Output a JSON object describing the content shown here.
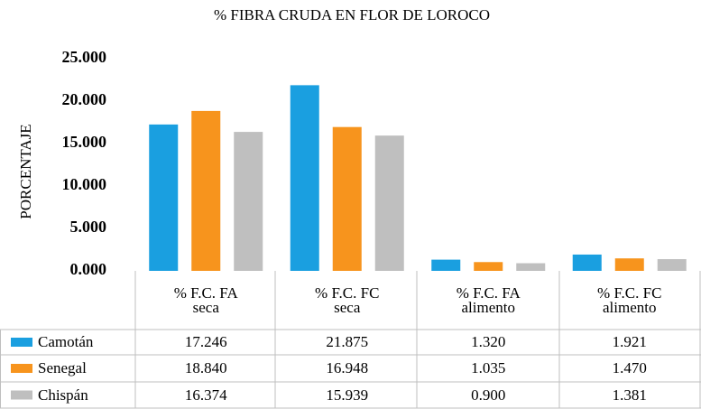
{
  "chart_data": {
    "type": "bar",
    "title": "% FIBRA CRUDA EN FLOR DE LOROCO",
    "y_label": "PORCENTAJE",
    "categories": [
      "% F.C. FA\nseca",
      "% F.C. FC\nseca",
      "% F.C. FA\nalimento",
      "% F.C. FC\nalimento"
    ],
    "series": [
      {
        "name": "Camotán",
        "color": "#1a9fe0",
        "values": [
          17.246,
          21.875,
          1.32,
          1.921
        ],
        "value_labels": [
          "17.246",
          "21.875",
          "1.320",
          "1.921"
        ]
      },
      {
        "name": "Senegal",
        "color": "#f7941d",
        "values": [
          18.84,
          16.948,
          1.035,
          1.47
        ],
        "value_labels": [
          "18.840",
          "16.948",
          "1.035",
          "1.470"
        ]
      },
      {
        "name": "Chispán",
        "color": "#bfbfbf",
        "values": [
          16.374,
          15.939,
          0.9,
          1.381
        ],
        "value_labels": [
          "16.374",
          "15.939",
          "0.900",
          "1.381"
        ]
      }
    ],
    "ylim": [
      0,
      25
    ],
    "yticks": [
      {
        "value": 0,
        "label": "0.000"
      },
      {
        "value": 5,
        "label": "5.000"
      },
      {
        "value": 10,
        "label": "10.000"
      },
      {
        "value": 15,
        "label": "15.000"
      },
      {
        "value": 20,
        "label": "20.000"
      },
      {
        "value": 25,
        "label": "25.000"
      }
    ],
    "grid": false
  }
}
